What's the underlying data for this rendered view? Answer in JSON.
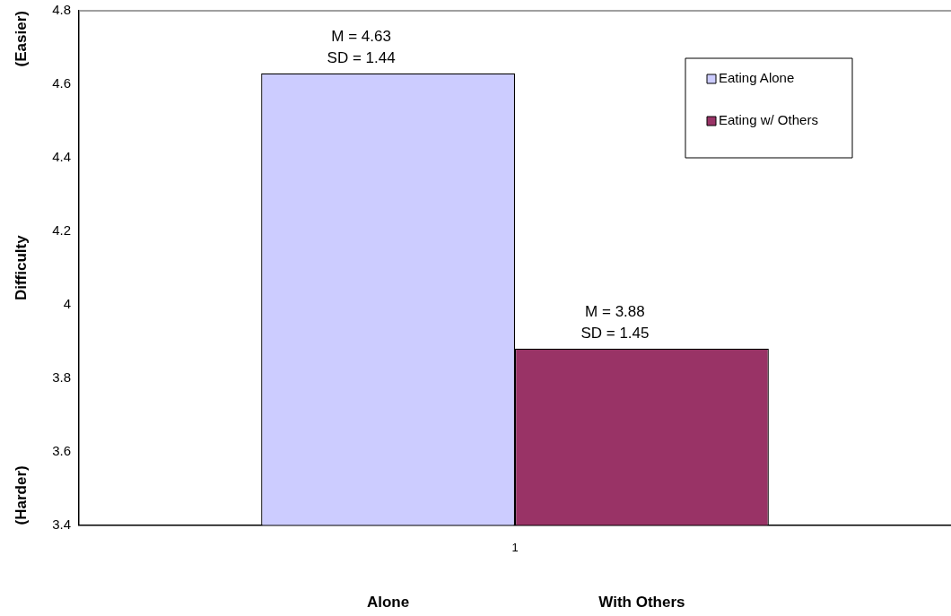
{
  "chart_data": {
    "type": "bar",
    "ylabel": "Difficulty",
    "categories": [
      "1"
    ],
    "series": [
      {
        "name": "Eating Alone",
        "color": "#ccccff",
        "values": [
          4.63
        ],
        "value_labels": [
          "M = 4.63\nSD = 1.44"
        ]
      },
      {
        "name": "Eating w/ Others",
        "color": "#993366",
        "values": [
          3.88
        ],
        "value_labels": [
          "M = 3.88\nSD = 1.45"
        ]
      }
    ],
    "ylim": [
      3.4,
      4.8
    ],
    "yticks": [
      3.4,
      3.6,
      3.8,
      {
        "value": 4,
        "label": "4"
      },
      4.2,
      4.4,
      4.6,
      4.8
    ],
    "grid": false,
    "legend": "top right",
    "annotations": [
      "(Easier)",
      "(Harder)",
      "Alone",
      "With Others"
    ]
  }
}
